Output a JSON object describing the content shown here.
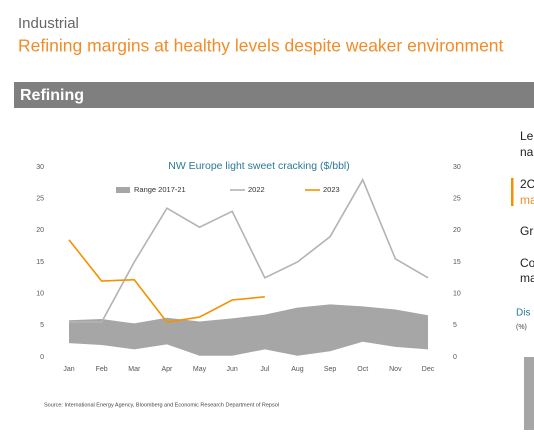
{
  "header": {
    "section": "Industrial",
    "title": "Refining margins at healthy levels despite weaker environment",
    "band": "Refining"
  },
  "side": {
    "items": [
      "Le",
      "na",
      "2C",
      "ma",
      "Gr",
      "Co",
      "ma"
    ],
    "subtitle": "Dis",
    "unit": "(%)"
  },
  "chart_data": {
    "type": "line",
    "title": "NW Europe light sweet cracking ($/bbl)",
    "categories": [
      "Jan",
      "Feb",
      "Mar",
      "Apr",
      "May",
      "Jun",
      "Jul",
      "Aug",
      "Sep",
      "Oct",
      "Nov",
      "Dec"
    ],
    "series": [
      {
        "name": "Range 2017-21",
        "color": "#a6a6a6",
        "values": [
          5.8,
          6,
          5.3,
          6.2,
          5.6,
          6.1,
          6.7,
          7.8,
          8.3,
          8,
          7.5,
          6.6
        ],
        "low": [
          2.2,
          1.9,
          1.2,
          2,
          0.2,
          0.2,
          1.2,
          0.2,
          0.9,
          2.4,
          1.6,
          1.2
        ]
      },
      {
        "name": "2022",
        "color": "#b3b3b3",
        "values": [
          5.5,
          5.5,
          15,
          23.5,
          20.5,
          23,
          12.5,
          15,
          19,
          28,
          15.5,
          12.5
        ]
      },
      {
        "name": "2023",
        "color": "#f39200",
        "values": [
          18.5,
          12,
          12.2,
          5.5,
          6.3,
          9,
          9.5,
          null,
          null,
          null,
          null,
          null
        ]
      }
    ],
    "ylim": [
      0,
      30
    ],
    "yticks": [
      0,
      5,
      10,
      15,
      20,
      25,
      30
    ],
    "y2lim": [
      0,
      30
    ],
    "y2ticks": [
      0,
      5,
      10,
      15,
      20,
      25,
      30
    ],
    "source": "Source: International Energy Agency, Bloomberg and Economic Research Department of Repsol"
  }
}
